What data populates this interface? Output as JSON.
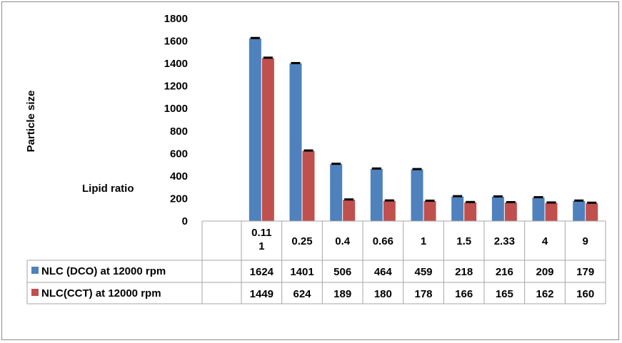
{
  "chart_data": {
    "type": "bar",
    "categories": [
      "0.111",
      "0.25",
      "0.4",
      "0.66",
      "1",
      "1.5",
      "2.33",
      "4",
      "9"
    ],
    "category_display": [
      [
        "0.11",
        "1"
      ],
      [
        "0.25"
      ],
      [
        "0.4"
      ],
      [
        "0.66"
      ],
      [
        "1"
      ],
      [
        "1.5"
      ],
      [
        "2.33"
      ],
      [
        "4"
      ],
      [
        "9"
      ]
    ],
    "series": [
      {
        "name": "NLC (DCO) at 12000 rpm",
        "values": [
          1624,
          1401,
          506,
          464,
          459,
          218,
          216,
          209,
          179
        ],
        "color": "#4f81bd"
      },
      {
        "name": "NLC(CCT) at 12000 rpm",
        "values": [
          1449,
          624,
          189,
          180,
          178,
          166,
          165,
          162,
          160
        ],
        "color": "#c0504d"
      }
    ],
    "ylabel": "Particle size",
    "xlabel": "Lipid ratio",
    "ylim": [
      0,
      1800
    ],
    "yticks": [
      "0",
      "200",
      "400",
      "600",
      "800",
      "1000",
      "1200",
      "1400",
      "1600",
      "1800"
    ],
    "error_bars": true,
    "data_table": true,
    "grid": false
  }
}
